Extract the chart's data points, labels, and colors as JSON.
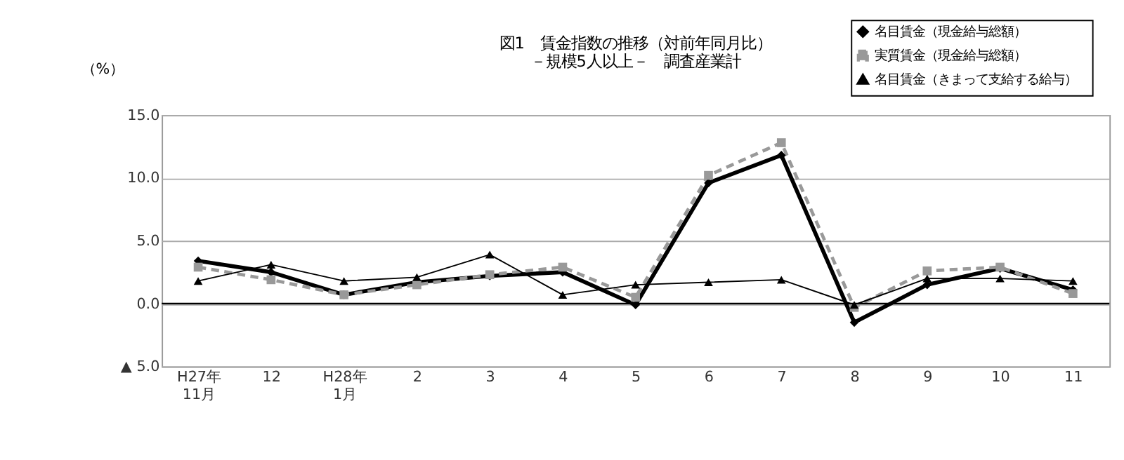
{
  "chart_data": {
    "type": "line",
    "title": [
      "図1　賃金指数の推移（対前年同月比）",
      "－規模5人以上－　調査産業計"
    ],
    "ylabel": "（%）",
    "categories": [
      "H27年\n11月",
      "12",
      "H28年\n1月",
      "2",
      "3",
      "4",
      "5",
      "6",
      "7",
      "8",
      "9",
      "10",
      "11"
    ],
    "series": [
      {
        "name": "名目賃金（現金給与総額）",
        "color": "#000000",
        "marker": "diamond",
        "line_style": "solid",
        "values": [
          3.4,
          2.5,
          0.7,
          1.7,
          2.2,
          2.5,
          -0.1,
          9.6,
          11.8,
          -1.5,
          1.5,
          2.8,
          1.1
        ]
      },
      {
        "name": "実質賃金（現金給与総額）",
        "color": "#999999",
        "marker": "square",
        "line_style": "dashed",
        "values": [
          2.9,
          1.9,
          0.7,
          1.5,
          2.3,
          2.9,
          0.5,
          10.2,
          12.8,
          -0.3,
          2.6,
          2.9,
          0.8
        ]
      },
      {
        "name": "名目賃金（きまって支給する給与）",
        "color": "#000000",
        "marker": "triangle",
        "line_style": "solid",
        "values": [
          1.8,
          3.1,
          1.8,
          2.1,
          3.9,
          0.7,
          1.5,
          1.7,
          1.9,
          -0.1,
          2.0,
          2.0,
          1.8
        ]
      }
    ],
    "ylim": [
      -5,
      15
    ],
    "yticks": [
      {
        "value": -5,
        "label": "▲ 5.0"
      },
      {
        "value": 0,
        "label": "0.0"
      },
      {
        "value": 5,
        "label": "5.0"
      },
      {
        "value": 10,
        "label": "10.0"
      },
      {
        "value": 15,
        "label": "15.0"
      }
    ],
    "ref_lines": [
      {
        "axis": "y",
        "value": 0,
        "color": "#000000"
      }
    ],
    "grid": "y",
    "legend": "top right"
  }
}
